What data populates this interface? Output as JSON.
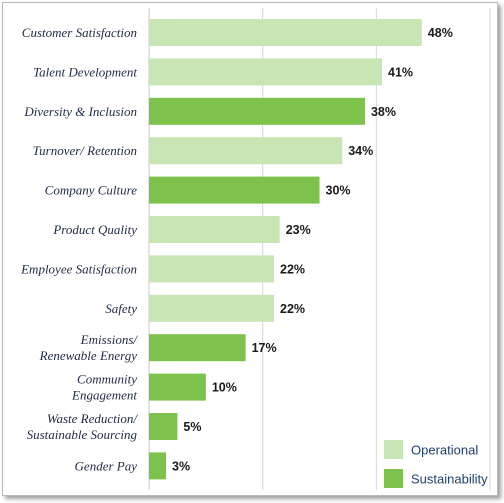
{
  "chart_data": {
    "type": "bar",
    "orientation": "horizontal",
    "categories": [
      "Customer Satisfaction",
      "Talent Development",
      "Diversity & Inclusion",
      "Turnover/ Retention",
      "Company Culture",
      "Product Quality",
      "Employee Satisfaction",
      "Safety",
      "Emissions/ Renewable Energy",
      "Community Engagement",
      "Waste Reduction/ Sustainable Sourcing",
      "Gender Pay"
    ],
    "category_lines": [
      [
        "Customer Satisfaction"
      ],
      [
        "Talent Development"
      ],
      [
        "Diversity & Inclusion"
      ],
      [
        "Turnover/ Retention"
      ],
      [
        "Company Culture"
      ],
      [
        "Product Quality"
      ],
      [
        "Employee Satisfaction"
      ],
      [
        "Safety"
      ],
      [
        "Emissions/",
        "Renewable Energy"
      ],
      [
        "Community",
        "Engagement"
      ],
      [
        "Waste Reduction/",
        "Sustainable Sourcing"
      ],
      [
        "Gender Pay"
      ]
    ],
    "values": [
      48,
      41,
      38,
      34,
      30,
      23,
      22,
      22,
      17,
      10,
      5,
      3
    ],
    "value_labels": [
      "48%",
      "41%",
      "38%",
      "34%",
      "30%",
      "23%",
      "22%",
      "22%",
      "17%",
      "10%",
      "5%",
      "3%"
    ],
    "groups": [
      "Operational",
      "Operational",
      "Sustainability",
      "Operational",
      "Sustainability",
      "Operational",
      "Operational",
      "Operational",
      "Sustainability",
      "Sustainability",
      "Sustainability",
      "Sustainability"
    ],
    "legend": [
      {
        "name": "Operational",
        "color": "#c8e6b3"
      },
      {
        "name": "Sustainability",
        "color": "#7dc24a"
      }
    ],
    "legend_position": "bottom-right",
    "xlim": [
      0,
      60
    ],
    "grid": "vertical",
    "title": "",
    "xlabel": "",
    "ylabel": ""
  }
}
